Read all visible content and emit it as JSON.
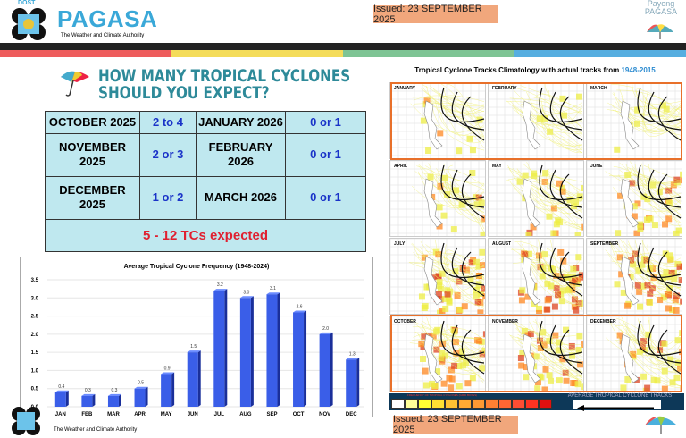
{
  "header": {
    "agency_small": "DOST",
    "agency": "PAGASA",
    "tagline": "The Weather and Climate Authority",
    "issued": "Issued: 23 SEPTEMBER 2025",
    "right_logo": "Payong PAGASA"
  },
  "stripe_colors": [
    "#ee5c5c",
    "#f4dc5a",
    "#7ec494",
    "#56aee0"
  ],
  "left": {
    "title_line1": "HOW MANY TROPICAL CYCLONES",
    "title_line2": "SHOULD YOU EXPECT?",
    "rows": [
      {
        "m1": "OCTOBER 2025",
        "v1": "2 to 4",
        "m2": "JANUARY 2026",
        "v2": "0 or 1"
      },
      {
        "m1": "NOVEMBER 2025",
        "v1": "2 or 3",
        "m2": "FEBRUARY 2026",
        "v2": "0 or 1"
      },
      {
        "m1": "DECEMBER 2025",
        "v1": "1 or 2",
        "m2": "MARCH 2026",
        "v2": "0 or 1"
      }
    ],
    "total": "5 - 12 TCs expected"
  },
  "chart_data": {
    "type": "bar",
    "title": "Average Tropical Cyclone Frequency (1948-2024)",
    "categories": [
      "JAN",
      "FEB",
      "MAR",
      "APR",
      "MAY",
      "JUN",
      "JUL",
      "AUG",
      "SEP",
      "OCT",
      "NOV",
      "DEC"
    ],
    "values": [
      0.4,
      0.3,
      0.3,
      0.5,
      0.9,
      1.5,
      3.2,
      3.0,
      3.1,
      2.6,
      2.0,
      1.3
    ],
    "ylim": [
      0,
      3.5
    ],
    "yticks": [
      "0.0",
      "0.5",
      "1.0",
      "1.5",
      "2.0",
      "2.5",
      "3.0",
      "3.5"
    ],
    "grid": true,
    "color": "#3a5ee8"
  },
  "right": {
    "title": "Tropical Cyclone Tracks Climatology with actual tracks from ",
    "title_years": "1948-2015",
    "months": [
      "JANUARY",
      "FEBRUARY",
      "MARCH",
      "APRIL",
      "MAY",
      "JUNE",
      "JULY",
      "AUGUST",
      "SEPTEMBER",
      "OCTOBER",
      "NOVEMBER",
      "DECEMBER"
    ],
    "intensity": [
      0.15,
      0.1,
      0.1,
      0.3,
      0.45,
      0.55,
      0.9,
      0.95,
      0.9,
      0.8,
      0.7,
      0.55
    ],
    "legend_title": "FREQUENCY OF TROPICAL CYCLONES (GRID BOXES)",
    "legend_colors": [
      "#ffffff",
      "#ffff99",
      "#ffff33",
      "#ffe033",
      "#ffc233",
      "#ffaa33",
      "#ff9933",
      "#ff8033",
      "#ff6633",
      "#ff4d33",
      "#ff3322",
      "#e01010"
    ],
    "legend_tracks": "AVERAGE TROPICAL CYCLONE TRACKS",
    "issued": "Issued: 23 SEPTEMBER 2025"
  }
}
